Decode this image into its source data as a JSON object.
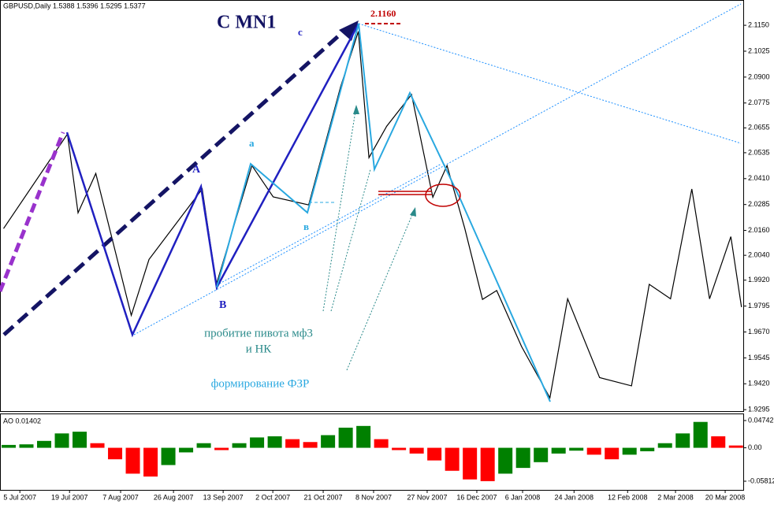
{
  "chart_data": {
    "type": "line",
    "title": "GBPUSD,Daily  1.5388 1.5396 1.5295 1.5377",
    "x": [
      1,
      19,
      22,
      27,
      37,
      42,
      57,
      61,
      71,
      77,
      87,
      96,
      101,
      104,
      109,
      116,
      122,
      126,
      131,
      136,
      140,
      147,
      155,
      160,
      169,
      178,
      183,
      189,
      195,
      200,
      206,
      209
    ],
    "values": [
      2.0169,
      2.0625,
      2.0245,
      2.0435,
      1.975,
      2.002,
      2.036,
      1.99,
      2.0473,
      2.0322,
      2.0283,
      2.0853,
      2.112,
      2.0511,
      2.0663,
      2.0816,
      2.032,
      2.0473,
      2.017,
      1.9827,
      1.987,
      1.96,
      1.9352,
      1.983,
      1.945,
      1.941,
      1.99,
      1.983,
      2.036,
      1.983,
      2.013,
      1.979
    ],
    "color": "#000000",
    "xlim": [
      0,
      209.5
    ],
    "ylim": [
      1.9288,
      2.1272
    ],
    "yticks": [
      {
        "value": 2.115,
        "label": "2.1150"
      },
      {
        "value": 2.1025,
        "label": "2.1025"
      },
      {
        "value": 2.09,
        "label": "2.0900"
      },
      {
        "value": 2.0775,
        "label": "2.0775"
      },
      {
        "value": 2.0655,
        "label": "2.0655"
      },
      {
        "value": 2.0535,
        "label": "2.0535"
      },
      {
        "value": 2.041,
        "label": "2.0410"
      },
      {
        "value": 2.0285,
        "label": "2.0285"
      },
      {
        "value": 2.016,
        "label": "2.0160"
      },
      {
        "value": 2.004,
        "label": "2.0040"
      },
      {
        "value": 1.992,
        "label": "1.9920"
      },
      {
        "value": 1.9795,
        "label": "1.9795"
      },
      {
        "value": 1.967,
        "label": "1.9670"
      },
      {
        "value": 1.9545,
        "label": "1.9545"
      },
      {
        "value": 1.942,
        "label": "1.9420"
      },
      {
        "value": 1.9295,
        "label": "1.9295"
      }
    ],
    "xticks": [
      {
        "value": 5.6,
        "label": "5 Jul 2007"
      },
      {
        "value": 19.6,
        "label": "19 Jul 2007"
      },
      {
        "value": 34,
        "label": "7 Aug 2007"
      },
      {
        "value": 48.9,
        "label": "26 Aug 2007"
      },
      {
        "value": 62.9,
        "label": "13 Sep 2007"
      },
      {
        "value": 76.9,
        "label": "2 Oct 2007"
      },
      {
        "value": 91.1,
        "label": "21 Oct 2007"
      },
      {
        "value": 105.3,
        "label": "8 Nov 2007"
      },
      {
        "value": 120.4,
        "label": "27 Nov 2007"
      },
      {
        "value": 134.4,
        "label": "16 Dec 2007"
      },
      {
        "value": 147.3,
        "label": "6 Jan 2008"
      },
      {
        "value": 161.8,
        "label": "24 Jan 2008"
      },
      {
        "value": 176.9,
        "label": "12 Feb 2008"
      },
      {
        "value": 190.4,
        "label": "2 Mar 2008"
      },
      {
        "value": 204.4,
        "label": "20 Mar 2008"
      }
    ],
    "annotations": [
      "C MN1",
      "c",
      "A",
      "B",
      "a",
      "в",
      "2.1160",
      "пробитие пивота мф3",
      "и НК",
      "формирование ФЗР"
    ],
    "indicator": {
      "type": "bar",
      "title": "AO 0.01402",
      "x": [
        0,
        5,
        10,
        15,
        20,
        25,
        30,
        35,
        40,
        45,
        50,
        55,
        60,
        65,
        70,
        75,
        80,
        85,
        90,
        95,
        100,
        105,
        110,
        115,
        120,
        125,
        130,
        135,
        140,
        145,
        150,
        155,
        160,
        165,
        170,
        175,
        180,
        185,
        190,
        195,
        200,
        205
      ],
      "values": [
        0.005,
        0.006,
        0.012,
        0.025,
        0.028,
        0.008,
        -0.02,
        -0.045,
        -0.05,
        -0.03,
        -0.008,
        0.008,
        -0.004,
        0.008,
        0.018,
        0.02,
        0.015,
        0.01,
        0.022,
        0.035,
        0.038,
        0.015,
        -0.004,
        -0.01,
        -0.022,
        -0.04,
        -0.055,
        -0.058,
        -0.045,
        -0.035,
        -0.025,
        -0.01,
        -0.005,
        -0.012,
        -0.02,
        -0.012,
        -0.006,
        0.008,
        0.025,
        0.045,
        0.02,
        0.004
      ],
      "up_color": "#008000",
      "down_color": "#ff0000",
      "ylim": [
        -0.0732,
        0.0583
      ],
      "yticks": [
        0.04742,
        {
          "value": 0,
          "label": "0.00"
        },
        -0.05812
      ]
    }
  }
}
